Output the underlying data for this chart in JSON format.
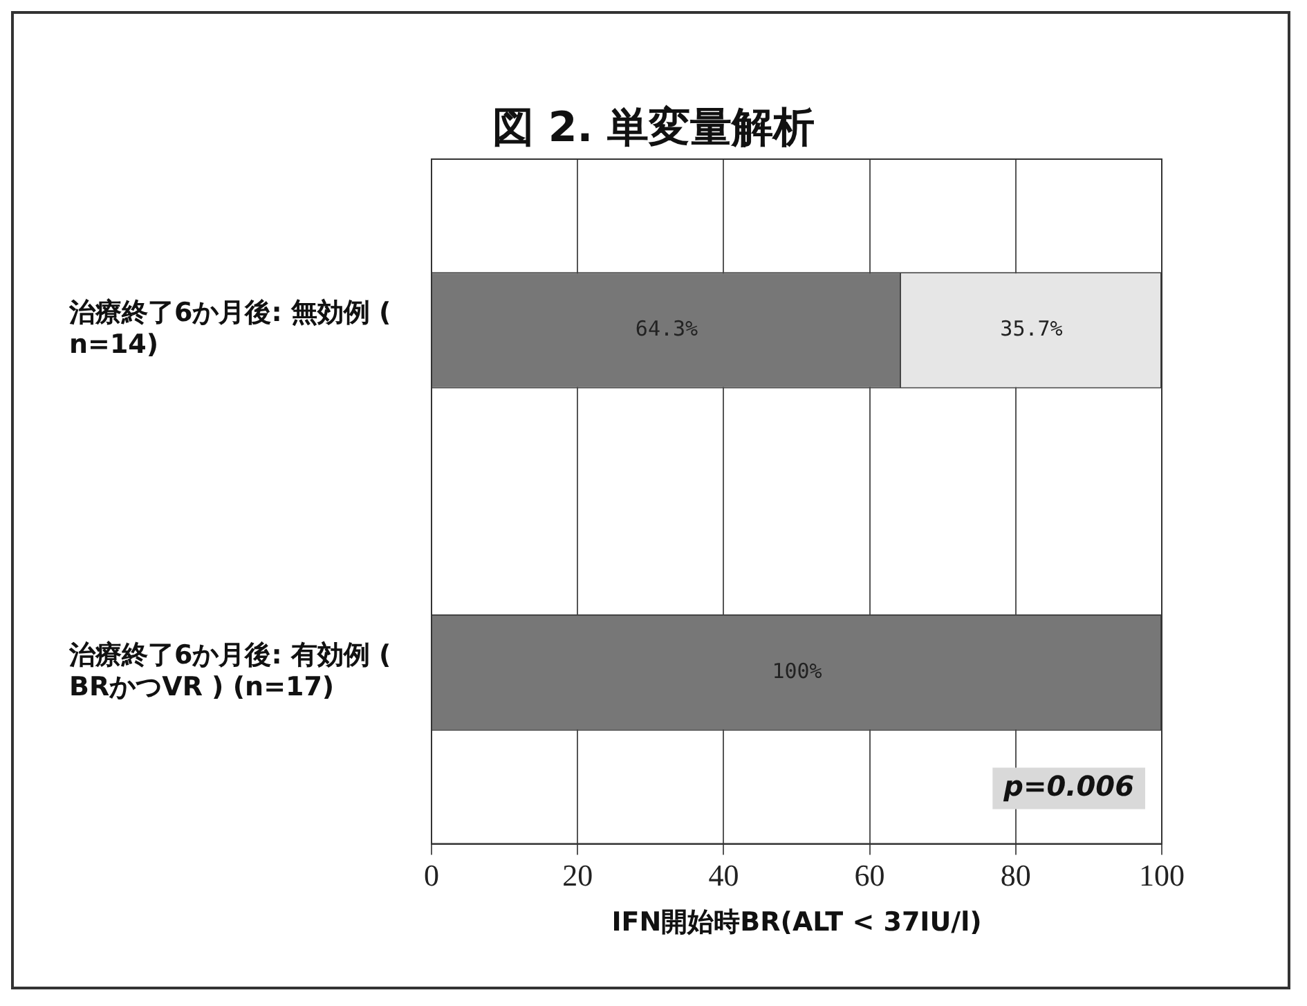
{
  "chart_data": {
    "type": "bar",
    "title": "図 2. 単変量解析",
    "xlabel": "IFN開始時BR(ALT < 37IU/l)",
    "orientation": "horizontal",
    "stacked": true,
    "categories": [
      "治療終了6か月後: 無効例 (n=14)",
      "治療終了6か月後: 有効例 (BRかつVR ) (n=17)"
    ],
    "series": [
      {
        "color": "#777777",
        "values": [
          64.3,
          100
        ],
        "value_labels": [
          "64.3%",
          "100%"
        ]
      },
      {
        "color": "#e6e6e6",
        "values": [
          35.7,
          null
        ],
        "value_labels": [
          "35.7%",
          null
        ]
      }
    ],
    "xlim": [
      0,
      100
    ],
    "xticks": [
      0,
      20,
      40,
      60,
      80,
      100
    ],
    "grid": "x",
    "legend": false,
    "annotations": [
      "p=0.006"
    ]
  }
}
